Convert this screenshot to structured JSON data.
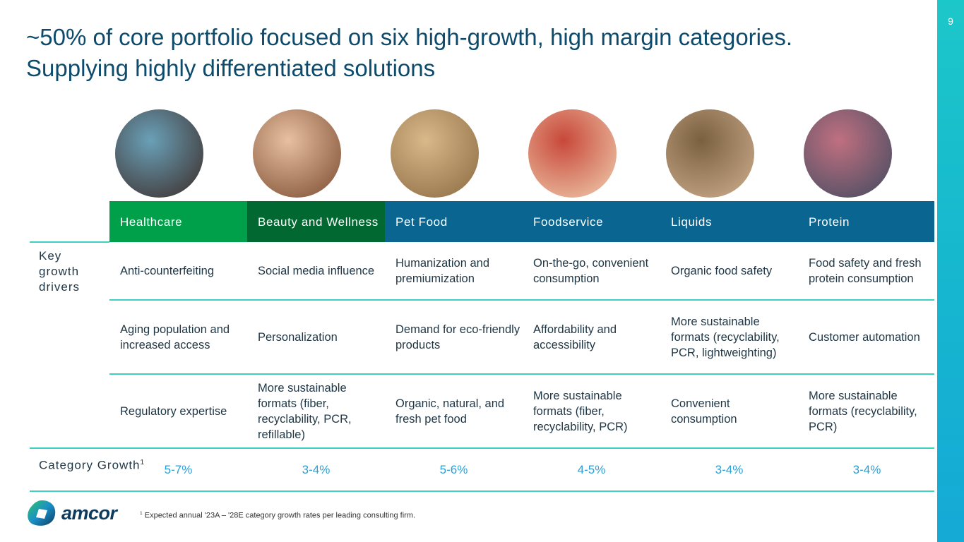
{
  "page_number": "9",
  "title": "~50% of core portfolio focused on six high-growth, high margin categories. Supplying highly differentiated solutions",
  "row_labels": {
    "drivers": "Key growth drivers",
    "growth": "Category Growth",
    "growth_sup": "1"
  },
  "categories": [
    {
      "name": "Healthcare",
      "color": "#00a04a",
      "drivers": [
        "Anti-counterfeiting",
        "Aging population and increased access",
        "Regulatory expertise"
      ],
      "growth": "5-7%"
    },
    {
      "name": "Beauty and Wellness",
      "color": "#006830",
      "drivers": [
        "Social media influence",
        "Personalization",
        "More sustainable formats (fiber, recyclability, PCR, refillable)"
      ],
      "growth": "3-4%"
    },
    {
      "name": "Pet Food",
      "color": "#0a6690",
      "drivers": [
        "Humanization and premiumization",
        "Demand for eco-friendly products",
        "Organic, natural, and fresh pet food"
      ],
      "growth": "5-6%"
    },
    {
      "name": "Foodservice",
      "color": "#0a6690",
      "drivers": [
        "On-the-go, convenient consumption",
        "Affordability and accessibility",
        "More sustainable formats (fiber, recyclability, PCR)"
      ],
      "growth": "4-5%"
    },
    {
      "name": "Liquids",
      "color": "#0a6690",
      "drivers": [
        "Organic food safety",
        "More sustainable formats (recyclability, PCR, lightweighting)",
        "Convenient consumption"
      ],
      "growth": "3-4%"
    },
    {
      "name": "Protein",
      "color": "#0a6690",
      "drivers": [
        "Food safety and fresh protein consumption",
        "Customer automation",
        "More sustainable formats (recyclability, PCR)"
      ],
      "growth": "3-4%"
    }
  ],
  "footnote_sup": "1",
  "footnote": "Expected annual '23A – '28E category growth rates per leading consulting firm.",
  "logo": "amcor"
}
